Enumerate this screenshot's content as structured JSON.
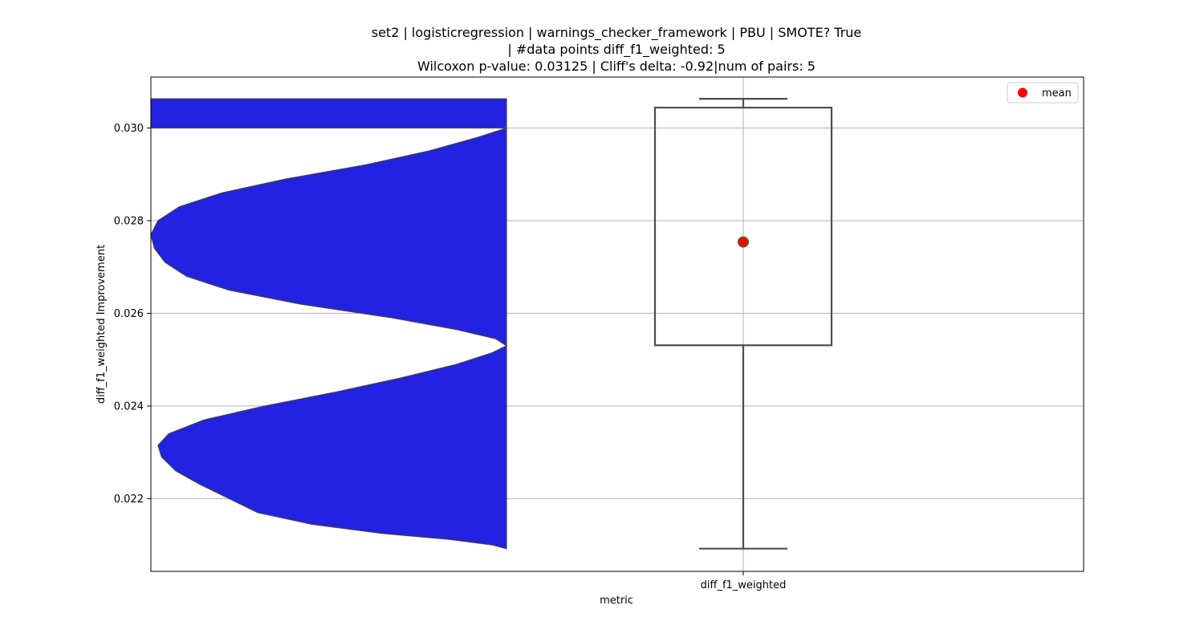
{
  "chart_data": {
    "type": "violin_box",
    "title_lines": [
      "set2 | logisticregression | warnings_checker_framework | PBU | SMOTE? True",
      "| #data points diff_f1_weighted: 5",
      "Wilcoxon p-value: 0.03125 | Cliff's delta: -0.92|num of pairs: 5"
    ],
    "xlabel": "metric",
    "ylabel": "diff_f1_weighted Improvement",
    "categories": [
      "diff_f1_weighted"
    ],
    "ylim": [
      0.02043,
      0.0311
    ],
    "yticks": [
      0.022,
      0.024,
      0.026,
      0.028,
      0.03
    ],
    "ytick_labels": [
      "0.022",
      "0.024",
      "0.026",
      "0.028",
      "0.030"
    ],
    "grid": true,
    "legend": {
      "position": "top-right",
      "entries": [
        {
          "label": "mean",
          "marker": "circle",
          "color": "#ff0000"
        }
      ]
    },
    "violin": {
      "color": "#2222e0",
      "edge_color": "#444444",
      "y_min": 0.02092,
      "y_max": 0.03063,
      "density_profile": [
        [
          0.02092,
          0.0
        ],
        [
          0.021,
          0.04
        ],
        [
          0.02112,
          0.16
        ],
        [
          0.02125,
          0.35
        ],
        [
          0.02145,
          0.55
        ],
        [
          0.0217,
          0.7
        ],
        [
          0.022,
          0.78
        ],
        [
          0.0223,
          0.86
        ],
        [
          0.0226,
          0.93
        ],
        [
          0.0229,
          0.97
        ],
        [
          0.02315,
          0.98
        ],
        [
          0.0234,
          0.95
        ],
        [
          0.0237,
          0.85
        ],
        [
          0.024,
          0.68
        ],
        [
          0.0243,
          0.48
        ],
        [
          0.0246,
          0.3
        ],
        [
          0.0249,
          0.14
        ],
        [
          0.02515,
          0.04
        ],
        [
          0.0253,
          0.0
        ],
        [
          0.02545,
          0.03
        ],
        [
          0.02565,
          0.14
        ],
        [
          0.0259,
          0.32
        ],
        [
          0.0262,
          0.58
        ],
        [
          0.0265,
          0.78
        ],
        [
          0.0268,
          0.9
        ],
        [
          0.0271,
          0.96
        ],
        [
          0.0274,
          0.99
        ],
        [
          0.0277,
          1.0
        ],
        [
          0.028,
          0.98
        ],
        [
          0.0283,
          0.92
        ],
        [
          0.0286,
          0.8
        ],
        [
          0.0289,
          0.62
        ],
        [
          0.0292,
          0.4
        ],
        [
          0.0295,
          0.22
        ],
        [
          0.0298,
          0.08
        ],
        [
          0.03,
          0.0
        ]
      ]
    },
    "box": {
      "whisker_low": 0.02092,
      "q1": 0.02531,
      "q3": 0.03044,
      "whisker_high": 0.03063,
      "mean": 0.02754,
      "mean_color": "#ff0000",
      "mean_edge_color": "#2e8b2e",
      "line_color": "#4d4d4d"
    }
  }
}
